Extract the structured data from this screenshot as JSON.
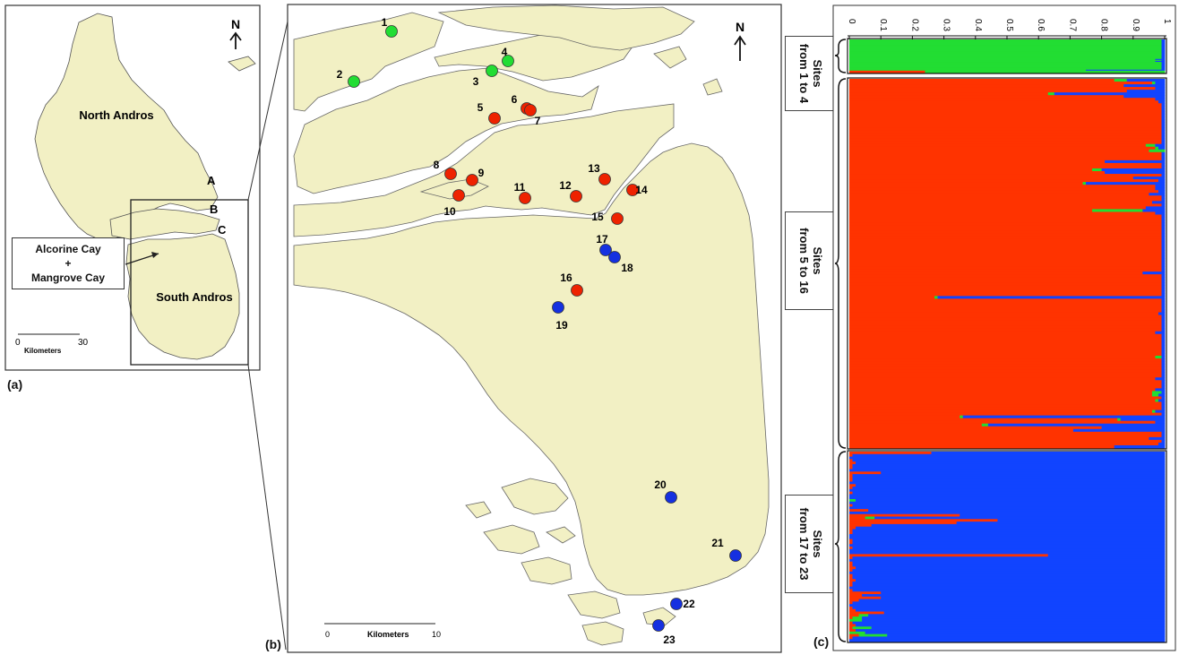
{
  "panel_a": {
    "label": "(a)",
    "north": "N",
    "north_andros": "North Andros",
    "south_andros": "South Andros",
    "region_a": "A",
    "region_b": "B",
    "region_c": "C",
    "callout_line1": "Alcorine Cay",
    "callout_plus": "+",
    "callout_line2": "Mangrove Cay",
    "scale_zero": "0",
    "scale_max": "30",
    "scale_unit": "Kilometers"
  },
  "panel_b": {
    "label": "(b)",
    "north": "N",
    "scale_zero": "0",
    "scale_unit": "Kilometers",
    "scale_max": "10",
    "colors": {
      "green": "#22dd33",
      "red": "#ee2200",
      "blue": "#1530e0",
      "land": "#f2f0c4"
    },
    "sites": [
      {
        "id": "1",
        "group": "green"
      },
      {
        "id": "2",
        "group": "green"
      },
      {
        "id": "3",
        "group": "green"
      },
      {
        "id": "4",
        "group": "green"
      },
      {
        "id": "5",
        "group": "red"
      },
      {
        "id": "6",
        "group": "red"
      },
      {
        "id": "7",
        "group": "red"
      },
      {
        "id": "8",
        "group": "red"
      },
      {
        "id": "9",
        "group": "red"
      },
      {
        "id": "10",
        "group": "red"
      },
      {
        "id": "11",
        "group": "red"
      },
      {
        "id": "12",
        "group": "red"
      },
      {
        "id": "13",
        "group": "red"
      },
      {
        "id": "14",
        "group": "red"
      },
      {
        "id": "15",
        "group": "red"
      },
      {
        "id": "16",
        "group": "red"
      },
      {
        "id": "17",
        "group": "blue"
      },
      {
        "id": "18",
        "group": "blue"
      },
      {
        "id": "19",
        "group": "blue"
      },
      {
        "id": "20",
        "group": "blue"
      },
      {
        "id": "21",
        "group": "blue"
      },
      {
        "id": "22",
        "group": "blue"
      },
      {
        "id": "23",
        "group": "blue"
      }
    ]
  },
  "panel_c": {
    "label": "(c)",
    "axis_ticks": [
      "0",
      "0.1",
      "0.2",
      "0.3",
      "0.4",
      "0.5",
      "0.6",
      "0.7",
      "0.8",
      "0.9",
      "1"
    ],
    "colors": {
      "green": "#22dd33",
      "red": "#ff3300",
      "blue": "#1144ff"
    },
    "groups": [
      {
        "label": "Sites\nfrom 1 to 4",
        "dominant": "green"
      },
      {
        "label": "Sites\nfrom 5 to 16",
        "dominant": "red"
      },
      {
        "label": "Sites\nfrom 17 to 23",
        "dominant": "blue"
      }
    ],
    "green_rows": [
      [
        0.0,
        0.99,
        0.01
      ],
      [
        0.0,
        0.99,
        0.01
      ],
      [
        0.0,
        0.99,
        0.01
      ],
      [
        0.0,
        0.99,
        0.01
      ],
      [
        0.0,
        0.99,
        0.01
      ],
      [
        0.0,
        0.99,
        0.01
      ],
      [
        0.0,
        0.99,
        0.01
      ],
      [
        0.0,
        0.99,
        0.01
      ],
      [
        0.0,
        0.99,
        0.01
      ],
      [
        0.0,
        0.99,
        0.01
      ],
      [
        0.0,
        0.99,
        0.01
      ],
      [
        0.0,
        0.99,
        0.01
      ],
      [
        0.0,
        0.99,
        0.01
      ],
      [
        0.0,
        0.99,
        0.01
      ],
      [
        0.0,
        0.99,
        0.01
      ],
      [
        0.0,
        0.99,
        0.01
      ],
      [
        0.0,
        0.99,
        0.01
      ],
      [
        0.0,
        0.99,
        0.01
      ],
      [
        0.0,
        0.99,
        0.01
      ],
      [
        0.0,
        0.99,
        0.01
      ],
      [
        0.0,
        0.97,
        0.03
      ],
      [
        0.0,
        0.99,
        0.01
      ],
      [
        0.0,
        0.97,
        0.03
      ],
      [
        0.0,
        0.99,
        0.01
      ],
      [
        0.0,
        0.99,
        0.01
      ],
      [
        0.0,
        0.99,
        0.01
      ],
      [
        0.0,
        0.99,
        0.01
      ],
      [
        0.0,
        0.99,
        0.01
      ],
      [
        0.0,
        0.99,
        0.01
      ],
      [
        0.0,
        0.99,
        0.01
      ],
      [
        0.0,
        0.99,
        0.01
      ],
      [
        0.0,
        0.75,
        0.25
      ],
      [
        0.24,
        0.76,
        0.0
      ],
      [
        0.24,
        0.76,
        0.0
      ]
    ],
    "red_rows": [
      [
        0.84,
        0.04,
        0.12
      ],
      [
        0.96,
        0.01,
        0.03
      ],
      [
        0.87,
        0.0,
        0.13
      ],
      [
        0.97,
        0.0,
        0.03
      ],
      [
        0.88,
        0.0,
        0.12
      ],
      [
        0.63,
        0.02,
        0.35
      ],
      [
        0.87,
        0.0,
        0.13
      ],
      [
        0.97,
        0.0,
        0.03
      ],
      [
        0.98,
        0.0,
        0.02
      ],
      [
        0.99,
        0.0,
        0.01
      ],
      [
        0.99,
        0.0,
        0.01
      ],
      [
        0.99,
        0.0,
        0.01
      ],
      [
        0.99,
        0.0,
        0.01
      ],
      [
        0.99,
        0.0,
        0.01
      ],
      [
        0.99,
        0.0,
        0.01
      ],
      [
        0.99,
        0.0,
        0.01
      ],
      [
        0.99,
        0.0,
        0.01
      ],
      [
        0.99,
        0.0,
        0.01
      ],
      [
        0.99,
        0.0,
        0.01
      ],
      [
        0.99,
        0.0,
        0.01
      ],
      [
        0.99,
        0.0,
        0.01
      ],
      [
        0.99,
        0.0,
        0.01
      ],
      [
        0.99,
        0.0,
        0.01
      ],
      [
        0.99,
        0.0,
        0.01
      ],
      [
        0.94,
        0.03,
        0.03
      ],
      [
        0.97,
        0.01,
        0.02
      ],
      [
        0.95,
        0.05,
        0.0
      ],
      [
        0.99,
        0.0,
        0.01
      ],
      [
        0.99,
        0.0,
        0.01
      ],
      [
        0.99,
        0.0,
        0.01
      ],
      [
        0.81,
        0.0,
        0.19
      ],
      [
        0.99,
        0.0,
        0.01
      ],
      [
        0.99,
        0.0,
        0.01
      ],
      [
        0.77,
        0.03,
        0.2
      ],
      [
        0.81,
        0.0,
        0.19
      ],
      [
        0.99,
        0.0,
        0.01
      ],
      [
        0.9,
        0.0,
        0.1
      ],
      [
        0.98,
        0.0,
        0.02
      ],
      [
        0.74,
        0.01,
        0.25
      ],
      [
        0.97,
        0.0,
        0.03
      ],
      [
        0.97,
        0.0,
        0.03
      ],
      [
        0.98,
        0.0,
        0.02
      ],
      [
        0.95,
        0.0,
        0.05
      ],
      [
        0.99,
        0.0,
        0.01
      ],
      [
        0.99,
        0.0,
        0.01
      ],
      [
        0.96,
        0.0,
        0.04
      ],
      [
        0.99,
        0.0,
        0.01
      ],
      [
        0.94,
        0.0,
        0.06
      ],
      [
        0.77,
        0.16,
        0.07
      ],
      [
        0.97,
        0.0,
        0.03
      ],
      [
        0.99,
        0.0,
        0.01
      ],
      [
        0.99,
        0.0,
        0.01
      ],
      [
        0.99,
        0.0,
        0.01
      ],
      [
        0.99,
        0.0,
        0.01
      ],
      [
        0.99,
        0.0,
        0.01
      ],
      [
        0.99,
        0.0,
        0.01
      ],
      [
        0.99,
        0.0,
        0.01
      ],
      [
        0.99,
        0.0,
        0.01
      ],
      [
        0.99,
        0.0,
        0.01
      ],
      [
        0.99,
        0.0,
        0.01
      ],
      [
        0.99,
        0.0,
        0.01
      ],
      [
        0.99,
        0.0,
        0.01
      ],
      [
        0.99,
        0.0,
        0.01
      ],
      [
        0.99,
        0.0,
        0.01
      ],
      [
        0.99,
        0.0,
        0.01
      ],
      [
        0.99,
        0.0,
        0.01
      ],
      [
        0.99,
        0.0,
        0.01
      ],
      [
        0.99,
        0.0,
        0.01
      ],
      [
        0.99,
        0.0,
        0.01
      ],
      [
        0.99,
        0.0,
        0.01
      ],
      [
        0.99,
        0.0,
        0.01
      ],
      [
        0.93,
        0.0,
        0.07
      ],
      [
        0.99,
        0.0,
        0.01
      ],
      [
        0.99,
        0.0,
        0.01
      ],
      [
        0.99,
        0.0,
        0.01
      ],
      [
        0.99,
        0.0,
        0.01
      ],
      [
        0.99,
        0.0,
        0.01
      ],
      [
        0.99,
        0.0,
        0.01
      ],
      [
        0.99,
        0.0,
        0.01
      ],
      [
        0.99,
        0.0,
        0.01
      ],
      [
        0.27,
        0.01,
        0.72
      ],
      [
        0.99,
        0.0,
        0.01
      ],
      [
        0.99,
        0.0,
        0.01
      ],
      [
        0.99,
        0.0,
        0.01
      ],
      [
        0.99,
        0.0,
        0.01
      ],
      [
        0.99,
        0.0,
        0.01
      ],
      [
        0.98,
        0.0,
        0.02
      ],
      [
        0.99,
        0.0,
        0.01
      ],
      [
        0.99,
        0.0,
        0.01
      ],
      [
        0.99,
        0.0,
        0.01
      ],
      [
        0.99,
        0.0,
        0.01
      ],
      [
        0.99,
        0.0,
        0.01
      ],
      [
        0.99,
        0.0,
        0.01
      ],
      [
        0.97,
        0.0,
        0.03
      ],
      [
        0.99,
        0.0,
        0.01
      ],
      [
        0.99,
        0.0,
        0.01
      ],
      [
        0.99,
        0.0,
        0.01
      ],
      [
        0.99,
        0.0,
        0.01
      ],
      [
        0.99,
        0.0,
        0.01
      ],
      [
        0.99,
        0.0,
        0.01
      ],
      [
        0.99,
        0.0,
        0.01
      ],
      [
        0.99,
        0.0,
        0.01
      ],
      [
        0.97,
        0.02,
        0.01
      ],
      [
        0.99,
        0.0,
        0.01
      ],
      [
        0.99,
        0.0,
        0.01
      ],
      [
        0.99,
        0.0,
        0.01
      ],
      [
        0.99,
        0.0,
        0.01
      ],
      [
        0.99,
        0.0,
        0.01
      ],
      [
        0.99,
        0.0,
        0.01
      ],
      [
        0.99,
        0.0,
        0.01
      ],
      [
        0.97,
        0.0,
        0.03
      ],
      [
        0.99,
        0.0,
        0.01
      ],
      [
        0.99,
        0.0,
        0.01
      ],
      [
        0.99,
        0.0,
        0.01
      ],
      [
        0.97,
        0.0,
        0.03
      ],
      [
        0.96,
        0.03,
        0.01
      ],
      [
        0.96,
        0.02,
        0.02
      ],
      [
        0.99,
        0.0,
        0.01
      ],
      [
        0.97,
        0.01,
        0.02
      ],
      [
        0.99,
        0.0,
        0.01
      ],
      [
        0.99,
        0.0,
        0.01
      ],
      [
        0.99,
        0.0,
        0.01
      ],
      [
        0.96,
        0.01,
        0.03
      ],
      [
        0.99,
        0.0,
        0.01
      ],
      [
        0.35,
        0.01,
        0.64
      ],
      [
        0.85,
        0.01,
        0.14
      ],
      [
        0.97,
        0.0,
        0.03
      ],
      [
        0.42,
        0.02,
        0.56
      ],
      [
        0.8,
        0.0,
        0.2
      ],
      [
        0.71,
        0.0,
        0.29
      ],
      [
        0.99,
        0.0,
        0.01
      ],
      [
        0.99,
        0.0,
        0.01
      ],
      [
        0.95,
        0.0,
        0.05
      ],
      [
        0.99,
        0.0,
        0.01
      ],
      [
        0.98,
        0.0,
        0.02
      ],
      [
        0.84,
        0.0,
        0.16
      ]
    ],
    "blue_rows": [
      [
        0.26,
        0.0,
        0.74
      ],
      [
        0.01,
        0.0,
        0.99
      ],
      [
        0.0,
        0.0,
        1.0
      ],
      [
        0.01,
        0.0,
        0.99
      ],
      [
        0.02,
        0.0,
        0.98
      ],
      [
        0.01,
        0.0,
        0.99
      ],
      [
        0.01,
        0.0,
        0.99
      ],
      [
        0.0,
        0.0,
        1.0
      ],
      [
        0.1,
        0.0,
        0.9
      ],
      [
        0.01,
        0.0,
        0.99
      ],
      [
        0.01,
        0.0,
        0.99
      ],
      [
        0.01,
        0.0,
        0.99
      ],
      [
        0.0,
        0.0,
        1.0
      ],
      [
        0.02,
        0.0,
        0.98
      ],
      [
        0.01,
        0.0,
        0.99
      ],
      [
        0.0,
        0.0,
        1.0
      ],
      [
        0.01,
        0.0,
        0.99
      ],
      [
        0.0,
        0.0,
        1.0
      ],
      [
        0.0,
        0.0,
        1.0
      ],
      [
        0.0,
        0.02,
        0.98
      ],
      [
        0.0,
        0.0,
        1.0
      ],
      [
        0.01,
        0.0,
        0.99
      ],
      [
        0.0,
        0.0,
        1.0
      ],
      [
        0.06,
        0.0,
        0.94
      ],
      [
        0.0,
        0.0,
        1.0
      ],
      [
        0.35,
        0.0,
        0.65
      ],
      [
        0.05,
        0.03,
        0.92
      ],
      [
        0.47,
        0.0,
        0.53
      ],
      [
        0.34,
        0.0,
        0.66
      ],
      [
        0.07,
        0.0,
        0.93
      ],
      [
        0.02,
        0.0,
        0.98
      ],
      [
        0.01,
        0.0,
        0.99
      ],
      [
        0.01,
        0.0,
        0.99
      ],
      [
        0.0,
        0.0,
        1.0
      ],
      [
        0.0,
        0.0,
        1.0
      ],
      [
        0.01,
        0.0,
        0.99
      ],
      [
        0.01,
        0.0,
        0.99
      ],
      [
        0.0,
        0.0,
        1.0
      ],
      [
        0.01,
        0.0,
        0.99
      ],
      [
        0.0,
        0.0,
        1.0
      ],
      [
        0.0,
        0.0,
        1.0
      ],
      [
        0.63,
        0.0,
        0.37
      ],
      [
        0.01,
        0.0,
        0.99
      ],
      [
        0.0,
        0.0,
        1.0
      ],
      [
        0.01,
        0.0,
        0.99
      ],
      [
        0.01,
        0.0,
        0.99
      ],
      [
        0.02,
        0.0,
        0.98
      ],
      [
        0.01,
        0.0,
        0.99
      ],
      [
        0.0,
        0.0,
        1.0
      ],
      [
        0.01,
        0.0,
        0.99
      ],
      [
        0.01,
        0.0,
        0.99
      ],
      [
        0.02,
        0.0,
        0.98
      ],
      [
        0.01,
        0.0,
        0.99
      ],
      [
        0.01,
        0.0,
        0.99
      ],
      [
        0.0,
        0.0,
        1.0
      ],
      [
        0.01,
        0.0,
        0.99
      ],
      [
        0.1,
        0.0,
        0.9
      ],
      [
        0.04,
        0.0,
        0.96
      ],
      [
        0.1,
        0.0,
        0.9
      ],
      [
        0.03,
        0.0,
        0.97
      ],
      [
        0.01,
        0.0,
        0.99
      ],
      [
        0.0,
        0.0,
        1.0
      ],
      [
        0.01,
        0.0,
        0.99
      ],
      [
        0.02,
        0.0,
        0.98
      ],
      [
        0.11,
        0.0,
        0.89
      ],
      [
        0.03,
        0.03,
        0.94
      ],
      [
        0.01,
        0.03,
        0.96
      ],
      [
        0.0,
        0.04,
        0.96
      ],
      [
        0.01,
        0.0,
        0.99
      ],
      [
        0.02,
        0.0,
        0.98
      ],
      [
        0.01,
        0.06,
        0.93
      ],
      [
        0.02,
        0.0,
        0.98
      ],
      [
        0.0,
        0.05,
        0.95
      ],
      [
        0.03,
        0.09,
        0.88
      ],
      [
        0.01,
        0.0,
        0.99
      ],
      [
        0.0,
        0.0,
        1.0
      ]
    ]
  }
}
